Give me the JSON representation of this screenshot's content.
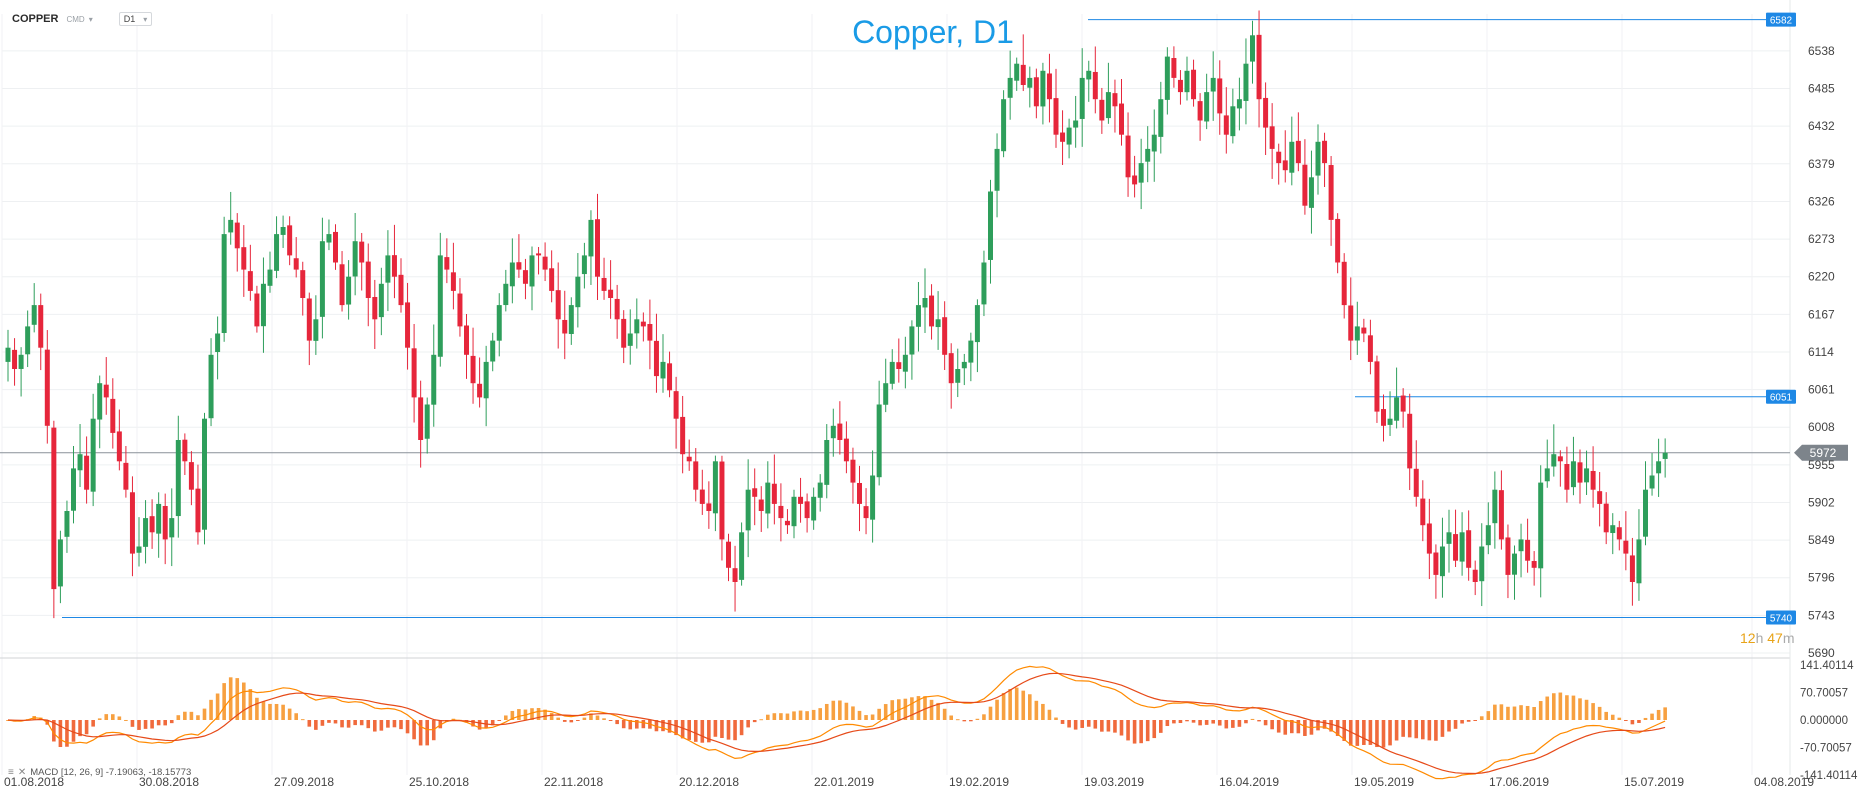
{
  "header": {
    "symbol": "COPPER",
    "symbol_type": "CMD",
    "timeframe": "D1",
    "title": "Copper, D1"
  },
  "countdown": {
    "hours": "12",
    "h": "h",
    "minutes": "47",
    "m": "m"
  },
  "macd_label": "MACD [12, 26, 9] -7.19063, -18.15773",
  "colors": {
    "up": "#2e9e5b",
    "down": "#e6263b",
    "level": "#1e88e5",
    "title": "#1a9be6",
    "macd_line": "#ff8a00",
    "signal_line": "#e64a19"
  },
  "chart_data": {
    "type": "candlestick",
    "title": "Copper, D1",
    "price_axis": {
      "ticks": [
        6538,
        6485,
        6432,
        6379,
        6326,
        6273,
        6220,
        6167,
        6114,
        6061,
        6008,
        5955,
        5902,
        5849,
        5796,
        5743,
        5690
      ],
      "range": [
        5690,
        6590
      ]
    },
    "date_axis": {
      "ticks": [
        "01.08.2018",
        "30.08.2018",
        "27.09.2018",
        "25.10.2018",
        "22.11.2018",
        "20.12.2018",
        "22.01.2019",
        "19.02.2019",
        "19.03.2019",
        "16.04.2019",
        "19.05.2019",
        "17.06.2019",
        "15.07.2019",
        "04.08.2019"
      ]
    },
    "current_price": 5972,
    "levels": [
      {
        "price": 6582,
        "label": "6582",
        "from": "19.03.2019"
      },
      {
        "price": 6051,
        "label": "6051",
        "from": "19.05.2019"
      },
      {
        "price": 5740,
        "label": "5740",
        "from": "01.08.2018"
      }
    ],
    "closes": [
      6120,
      6090,
      6110,
      6150,
      6180,
      6120,
      6010,
      5780,
      5850,
      5890,
      5950,
      5970,
      5920,
      6020,
      6070,
      6050,
      6000,
      5960,
      5920,
      5830,
      5840,
      5880,
      5860,
      5900,
      5850,
      5880,
      5990,
      5960,
      5920,
      5860,
      6020,
      6110,
      6140,
      6280,
      6300,
      6260,
      6230,
      6200,
      6150,
      6210,
      6230,
      6280,
      6290,
      6250,
      6230,
      6190,
      6130,
      6160,
      6270,
      6280,
      6240,
      6180,
      6220,
      6270,
      6240,
      6190,
      6160,
      6210,
      6250,
      6220,
      6180,
      6120,
      6050,
      5990,
      6040,
      6110,
      6250,
      6230,
      6200,
      6150,
      6110,
      6070,
      6050,
      6100,
      6130,
      6180,
      6210,
      6240,
      6230,
      6210,
      6250,
      6250,
      6230,
      6200,
      6160,
      6140,
      6180,
      6220,
      6250,
      6300,
      6220,
      6200,
      6190,
      6160,
      6120,
      6140,
      6160,
      6150,
      6130,
      6080,
      6100,
      6060,
      6020,
      5970,
      5960,
      5920,
      5900,
      5890,
      5960,
      5850,
      5810,
      5790,
      5860,
      5920,
      5910,
      5890,
      5930,
      5900,
      5880,
      5870,
      5910,
      5900,
      5880,
      5910,
      5930,
      5990,
      6010,
      5990,
      5960,
      5930,
      5900,
      5880,
      5940,
      6040,
      6070,
      6100,
      6090,
      6110,
      6150,
      6180,
      6190,
      6150,
      6160,
      6110,
      6070,
      6090,
      6100,
      6130,
      6180,
      6240,
      6340,
      6400,
      6470,
      6500,
      6520,
      6490,
      6500,
      6460,
      6510,
      6470,
      6420,
      6410,
      6430,
      6440,
      6500,
      6510,
      6470,
      6440,
      6480,
      6460,
      6420,
      6360,
      6350,
      6380,
      6400,
      6420,
      6470,
      6530,
      6500,
      6480,
      6510,
      6470,
      6440,
      6480,
      6500,
      6450,
      6420,
      6460,
      6470,
      6520,
      6560,
      6470,
      6430,
      6400,
      6380,
      6370,
      6410,
      6380,
      6320,
      6360,
      6410,
      6380,
      6300,
      6240,
      6180,
      6130,
      6150,
      6140,
      6100,
      6030,
      6010,
      6020,
      6050,
      6030,
      5950,
      5910,
      5870,
      5830,
      5800,
      5840,
      5860,
      5820,
      5860,
      5810,
      5790,
      5840,
      5870,
      5920,
      5850,
      5800,
      5830,
      5850,
      5820,
      5810,
      5930,
      5950,
      5970,
      5960,
      5920,
      5960,
      5930,
      5950,
      5920,
      5900,
      5860,
      5870,
      5850,
      5830,
      5790,
      5850,
      5920,
      5940,
      5960,
      5972
    ],
    "macd": {
      "range": [
        -141.40114,
        141.40114
      ],
      "ticks": [
        "141.40114",
        "70.70057",
        "0.000000",
        "-70.70057",
        "-141.40114"
      ],
      "last": {
        "macd": -7.19063,
        "signal": -18.15773
      }
    }
  }
}
